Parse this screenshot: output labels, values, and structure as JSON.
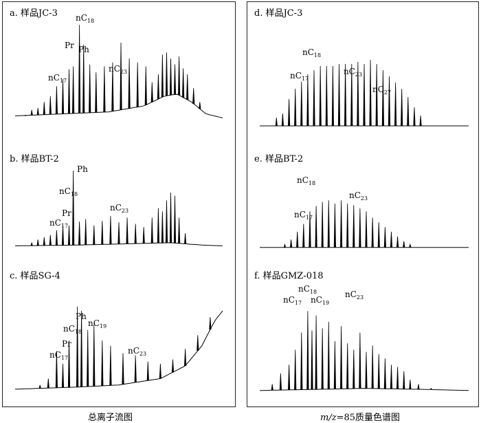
{
  "captions": {
    "left": "总离子流图",
    "right_prefix_italic": "m/z",
    "right_rest": "=85质量色谱图"
  },
  "chart_data": [
    {
      "id": "a",
      "type": "line",
      "title": "a. 样品JC-3",
      "panel": "left",
      "detector": "TIC",
      "xlabel": "",
      "ylabel": "",
      "annotations": [
        {
          "text": "nC17",
          "sub": "17",
          "base": "nC"
        },
        {
          "text": "Pr"
        },
        {
          "text": "nC18",
          "sub": "18",
          "base": "nC"
        },
        {
          "text": "Ph"
        },
        {
          "text": "nC23",
          "sub": "23",
          "base": "nC"
        }
      ],
      "baseline": [
        [
          0,
          0.08
        ],
        [
          0.45,
          0.12
        ],
        [
          0.62,
          0.18
        ],
        [
          0.72,
          0.28
        ],
        [
          0.78,
          0.3
        ],
        [
          0.85,
          0.22
        ],
        [
          0.92,
          0.1
        ],
        [
          1,
          0.06
        ]
      ],
      "peaks": [
        [
          0.05,
          0.08
        ],
        [
          0.08,
          0.14
        ],
        [
          0.11,
          0.16
        ],
        [
          0.14,
          0.22
        ],
        [
          0.17,
          0.28
        ],
        [
          0.2,
          0.38
        ],
        [
          0.23,
          0.45
        ],
        [
          0.26,
          0.55
        ],
        [
          0.28,
          0.58
        ],
        [
          0.31,
          1.0
        ],
        [
          0.33,
          0.8
        ],
        [
          0.36,
          0.6
        ],
        [
          0.39,
          0.52
        ],
        [
          0.43,
          0.58
        ],
        [
          0.47,
          0.62
        ],
        [
          0.51,
          0.82
        ],
        [
          0.55,
          0.66
        ],
        [
          0.59,
          0.62
        ],
        [
          0.63,
          0.58
        ],
        [
          0.66,
          0.42
        ],
        [
          0.69,
          0.5
        ],
        [
          0.71,
          0.7
        ],
        [
          0.73,
          0.72
        ],
        [
          0.75,
          0.66
        ],
        [
          0.77,
          0.6
        ],
        [
          0.79,
          0.68
        ],
        [
          0.81,
          0.56
        ],
        [
          0.83,
          0.5
        ],
        [
          0.86,
          0.36
        ],
        [
          0.89,
          0.22
        ]
      ]
    },
    {
      "id": "b",
      "type": "line",
      "title": "b. 样品BT-2",
      "panel": "left",
      "detector": "TIC",
      "xlabel": "",
      "ylabel": "",
      "annotations": [
        {
          "text": "nC17",
          "sub": "17",
          "base": "nC"
        },
        {
          "text": "Pr"
        },
        {
          "text": "nC18",
          "sub": "18",
          "base": "nC"
        },
        {
          "text": "Ph"
        },
        {
          "text": "nC23",
          "sub": "23",
          "base": "nC"
        }
      ],
      "baseline": [
        [
          0,
          0.04
        ],
        [
          0.3,
          0.05
        ],
        [
          0.6,
          0.07
        ],
        [
          0.75,
          0.08
        ],
        [
          0.9,
          0.05
        ],
        [
          1,
          0.04
        ]
      ],
      "peaks": [
        [
          0.08,
          0.08
        ],
        [
          0.11,
          0.12
        ],
        [
          0.14,
          0.15
        ],
        [
          0.17,
          0.18
        ],
        [
          0.2,
          0.24
        ],
        [
          0.23,
          0.3
        ],
        [
          0.26,
          0.3
        ],
        [
          0.28,
          1.0
        ],
        [
          0.31,
          0.35
        ],
        [
          0.34,
          0.38
        ],
        [
          0.38,
          0.3
        ],
        [
          0.42,
          0.36
        ],
        [
          0.46,
          0.42
        ],
        [
          0.5,
          0.34
        ],
        [
          0.54,
          0.4
        ],
        [
          0.58,
          0.32
        ],
        [
          0.62,
          0.28
        ],
        [
          0.66,
          0.4
        ],
        [
          0.69,
          0.52
        ],
        [
          0.71,
          0.48
        ],
        [
          0.73,
          0.62
        ],
        [
          0.75,
          0.72
        ],
        [
          0.77,
          0.68
        ],
        [
          0.79,
          0.4
        ],
        [
          0.82,
          0.2
        ]
      ]
    },
    {
      "id": "c",
      "type": "line",
      "title": "c. 样品SG-4",
      "panel": "left",
      "detector": "TIC",
      "xlabel": "",
      "ylabel": "",
      "annotations": [
        {
          "text": "nC17",
          "sub": "17",
          "base": "nC"
        },
        {
          "text": "Pr"
        },
        {
          "text": "nC18",
          "sub": "18",
          "base": "nC"
        },
        {
          "text": "Ph"
        },
        {
          "text": "nC19",
          "sub": "19",
          "base": "nC"
        },
        {
          "text": "nC23",
          "sub": "23",
          "base": "nC"
        }
      ],
      "baseline": [
        [
          0,
          0.04
        ],
        [
          0.3,
          0.06
        ],
        [
          0.5,
          0.08
        ],
        [
          0.7,
          0.14
        ],
        [
          0.82,
          0.26
        ],
        [
          0.9,
          0.45
        ],
        [
          0.96,
          0.68
        ],
        [
          1,
          0.78
        ]
      ],
      "peaks": [
        [
          0.12,
          0.08
        ],
        [
          0.16,
          0.14
        ],
        [
          0.2,
          0.4
        ],
        [
          0.23,
          0.28
        ],
        [
          0.26,
          0.5
        ],
        [
          0.3,
          0.82
        ],
        [
          0.32,
          0.78
        ],
        [
          0.35,
          0.6
        ],
        [
          0.38,
          0.65
        ],
        [
          0.42,
          0.5
        ],
        [
          0.46,
          0.45
        ],
        [
          0.52,
          0.38
        ],
        [
          0.58,
          0.36
        ],
        [
          0.64,
          0.3
        ],
        [
          0.7,
          0.28
        ],
        [
          0.76,
          0.32
        ],
        [
          0.82,
          0.42
        ],
        [
          0.88,
          0.55
        ],
        [
          0.94,
          0.72
        ]
      ]
    },
    {
      "id": "d",
      "type": "line",
      "title": "d. 样品JC-3",
      "panel": "right",
      "detector": "m/z=85",
      "xlabel": "",
      "ylabel": "",
      "annotations": [
        {
          "text": "nC17",
          "sub": "17",
          "base": "nC"
        },
        {
          "text": "nC18",
          "sub": "18",
          "base": "nC"
        },
        {
          "text": "nC23",
          "sub": "23",
          "base": "nC"
        },
        {
          "text": "nC27",
          "sub": "27",
          "base": "nC"
        }
      ],
      "baseline": [
        [
          0,
          0.02
        ],
        [
          1,
          0.02
        ]
      ],
      "peaks": [
        [
          0.08,
          0.1
        ],
        [
          0.11,
          0.14
        ],
        [
          0.14,
          0.28
        ],
        [
          0.17,
          0.38
        ],
        [
          0.2,
          0.45
        ],
        [
          0.23,
          0.52
        ],
        [
          0.26,
          0.56
        ],
        [
          0.29,
          0.6
        ],
        [
          0.32,
          0.6
        ],
        [
          0.35,
          0.6
        ],
        [
          0.38,
          0.62
        ],
        [
          0.41,
          0.62
        ],
        [
          0.44,
          0.62
        ],
        [
          0.47,
          0.64
        ],
        [
          0.5,
          0.62
        ],
        [
          0.53,
          0.66
        ],
        [
          0.56,
          0.62
        ],
        [
          0.59,
          0.56
        ],
        [
          0.62,
          0.5
        ],
        [
          0.65,
          0.44
        ],
        [
          0.68,
          0.38
        ],
        [
          0.71,
          0.3
        ],
        [
          0.74,
          0.2
        ],
        [
          0.77,
          0.12
        ]
      ]
    },
    {
      "id": "e",
      "type": "line",
      "title": "e. 样品BT-2",
      "panel": "right",
      "detector": "m/z=85",
      "xlabel": "",
      "ylabel": "",
      "annotations": [
        {
          "text": "nC17",
          "sub": "17",
          "base": "nC"
        },
        {
          "text": "nC18",
          "sub": "18",
          "base": "nC"
        },
        {
          "text": "nC23",
          "sub": "23",
          "base": "nC"
        }
      ],
      "baseline": [
        [
          0,
          0.02
        ],
        [
          1,
          0.02
        ]
      ],
      "peaks": [
        [
          0.12,
          0.06
        ],
        [
          0.15,
          0.12
        ],
        [
          0.18,
          0.22
        ],
        [
          0.21,
          0.32
        ],
        [
          0.24,
          0.48
        ],
        [
          0.27,
          0.55
        ],
        [
          0.3,
          0.6
        ],
        [
          0.33,
          0.62
        ],
        [
          0.36,
          0.58
        ],
        [
          0.39,
          0.62
        ],
        [
          0.42,
          0.58
        ],
        [
          0.45,
          0.56
        ],
        [
          0.48,
          0.52
        ],
        [
          0.51,
          0.48
        ],
        [
          0.54,
          0.4
        ],
        [
          0.57,
          0.34
        ],
        [
          0.6,
          0.28
        ],
        [
          0.63,
          0.22
        ],
        [
          0.66,
          0.16
        ],
        [
          0.69,
          0.1
        ],
        [
          0.72,
          0.06
        ]
      ]
    },
    {
      "id": "f",
      "type": "line",
      "title": "f. 样品GMZ-018",
      "panel": "right",
      "detector": "m/z=85",
      "xlabel": "",
      "ylabel": "",
      "annotations": [
        {
          "text": "nC17",
          "sub": "17",
          "base": "nC"
        },
        {
          "text": "nC18",
          "sub": "18",
          "base": "nC"
        },
        {
          "text": "nC19",
          "sub": "19",
          "base": "nC"
        },
        {
          "text": "nC23",
          "sub": "23",
          "base": "nC"
        }
      ],
      "baseline": [
        [
          0,
          0.04
        ],
        [
          0.5,
          0.06
        ],
        [
          0.8,
          0.05
        ],
        [
          1,
          0.04
        ]
      ],
      "peaks": [
        [
          0.06,
          0.1
        ],
        [
          0.1,
          0.2
        ],
        [
          0.14,
          0.28
        ],
        [
          0.17,
          0.42
        ],
        [
          0.2,
          0.58
        ],
        [
          0.23,
          0.78
        ],
        [
          0.25,
          0.6
        ],
        [
          0.27,
          0.74
        ],
        [
          0.3,
          0.62
        ],
        [
          0.33,
          0.68
        ],
        [
          0.36,
          0.5
        ],
        [
          0.39,
          0.64
        ],
        [
          0.42,
          0.48
        ],
        [
          0.45,
          0.42
        ],
        [
          0.48,
          0.58
        ],
        [
          0.51,
          0.4
        ],
        [
          0.54,
          0.46
        ],
        [
          0.57,
          0.38
        ],
        [
          0.6,
          0.34
        ],
        [
          0.63,
          0.28
        ],
        [
          0.66,
          0.26
        ],
        [
          0.69,
          0.22
        ],
        [
          0.72,
          0.14
        ],
        [
          0.76,
          0.1
        ],
        [
          0.82,
          0.06
        ]
      ]
    }
  ]
}
